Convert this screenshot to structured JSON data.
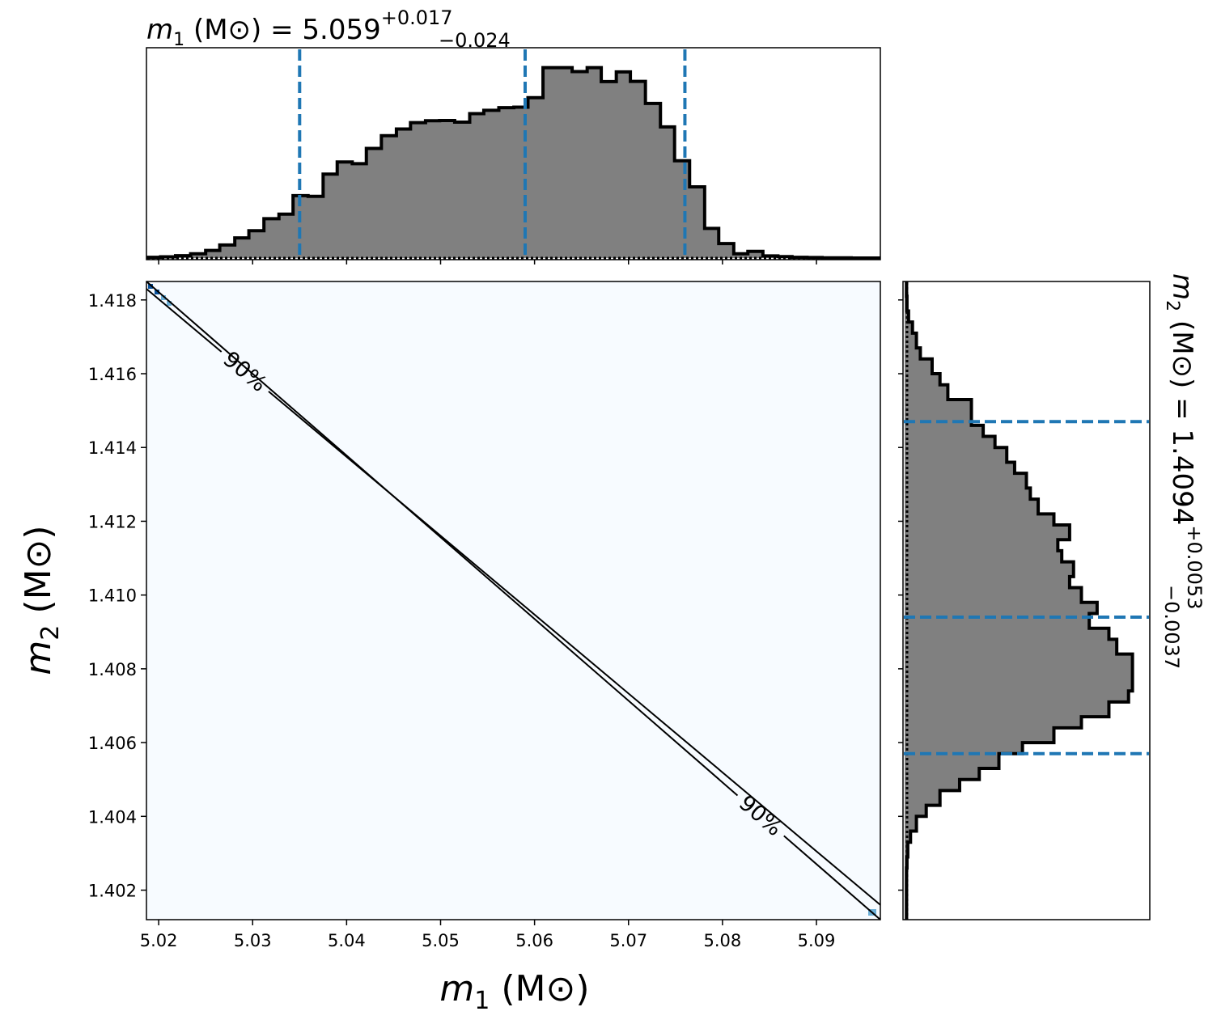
{
  "chart_data": [
    {
      "type": "histogram",
      "panel": "m1-marginal",
      "title": {
        "prefix": "m",
        "subscript": "1",
        "unit": "(M⊙)",
        "equals": "= 5.059",
        "upper": "+0.017",
        "lower": "−0.024"
      },
      "x_edges": [
        5.0187,
        5.0202,
        5.0218,
        5.0234,
        5.025,
        5.0265,
        5.0281,
        5.0296,
        5.0312,
        5.0328,
        5.0343,
        5.0359,
        5.0375,
        5.039,
        5.0406,
        5.0421,
        5.0437,
        5.0453,
        5.0468,
        5.0484,
        5.0499,
        5.0515,
        5.0531,
        5.0546,
        5.0562,
        5.0578,
        5.0593,
        5.0609,
        5.0624,
        5.064,
        5.0656,
        5.0671,
        5.0687,
        5.0702,
        5.0718,
        5.0734,
        5.0749,
        5.0765,
        5.0781,
        5.0796,
        5.0812,
        5.0827,
        5.0843,
        5.0859,
        5.0874,
        5.089,
        5.0906,
        5.0921,
        5.0937,
        5.0952,
        5.0968
      ],
      "density": [
        0.3,
        0.5,
        1.0,
        1.8,
        3.2,
        5.5,
        8.5,
        11.5,
        16.6,
        18.5,
        26.3,
        26.0,
        35.4,
        40.5,
        39.8,
        46.2,
        51.6,
        54.4,
        57.1,
        57.9,
        58.0,
        57.3,
        60.9,
        62.3,
        63.4,
        63.6,
        67.6,
        80.3,
        80.3,
        78.6,
        80.3,
        74.4,
        78.5,
        74.5,
        65.2,
        55.3,
        41.0,
        30.0,
        12.5,
        6.1,
        1.8,
        2.8,
        0.9,
        0.6,
        0.3,
        0.2,
        0.1,
        0.1,
        0.0,
        0.0
      ],
      "quantiles": {
        "lower": 5.035,
        "median": 5.059,
        "upper": 5.076
      },
      "ylim": [
        0,
        88
      ],
      "xlim": [
        5.0187,
        5.0968
      ],
      "x_ticks": [
        5.02,
        5.03,
        5.04,
        5.05,
        5.06,
        5.07,
        5.08,
        5.09
      ],
      "style": {
        "fill": "#808080",
        "edge": "#000000",
        "quantile_color": "#1f77b4"
      }
    },
    {
      "type": "heatmap",
      "panel": "joint",
      "xlabel": {
        "prefix": "m",
        "subscript": "1",
        "unit": "(M⊙)"
      },
      "ylabel": {
        "prefix": "m",
        "subscript": "2",
        "unit": "(M⊙)"
      },
      "xlim": [
        5.0187,
        5.0968
      ],
      "ylim": [
        1.4012,
        1.4185
      ],
      "x_ticks": [
        "5.02",
        "5.03",
        "5.04",
        "5.05",
        "5.06",
        "5.07",
        "5.08",
        "5.09"
      ],
      "y_ticks": [
        "1.402",
        "1.404",
        "1.406",
        "1.408",
        "1.410",
        "1.412",
        "1.414",
        "1.416",
        "1.418"
      ],
      "background": "#f7fbff",
      "contours": [
        {
          "label": "90%",
          "points": [
            [
              5.0187,
              1.4183
            ],
            [
              5.0968,
              1.4016
            ]
          ],
          "label_at": [
            5.029,
            1.416
          ]
        },
        {
          "label": "90%",
          "points": [
            [
              5.0187,
              1.4185
            ],
            [
              5.0968,
              1.4012
            ]
          ],
          "label_at": [
            5.084,
            1.404
          ]
        }
      ],
      "corner_cells": {
        "color_dark": "#08519c",
        "color_light": "#6baed6"
      }
    },
    {
      "type": "histogram",
      "panel": "m2-marginal",
      "orientation": "horizontal",
      "title": {
        "prefix": "m",
        "subscript": "2",
        "unit": "(M⊙)",
        "equals": "= 1.4094",
        "upper": "+0.0053",
        "lower": "−0.0037"
      },
      "y_edges": [
        1.4012,
        1.4015,
        1.4019,
        1.4022,
        1.4026,
        1.4029,
        1.4033,
        1.4036,
        1.404,
        1.4043,
        1.4047,
        1.405,
        1.4053,
        1.4057,
        1.406,
        1.4064,
        1.4067,
        1.4071,
        1.4074,
        1.4078,
        1.4081,
        1.4084,
        1.4088,
        1.4091,
        1.4095,
        1.4098,
        1.4102,
        1.4105,
        1.4109,
        1.4112,
        1.4115,
        1.4119,
        1.4122,
        1.4126,
        1.4129,
        1.4133,
        1.4136,
        1.414,
        1.4143,
        1.4146,
        1.415,
        1.4153,
        1.4157,
        1.416,
        1.4164,
        1.4167,
        1.4171,
        1.4174,
        1.4177,
        1.4181,
        1.4185
      ],
      "density": [
        0.5,
        0.5,
        0.5,
        0.5,
        0.6,
        0.8,
        1.5,
        3.0,
        5.5,
        9.0,
        14.0,
        19.0,
        24.0,
        30.0,
        38.0,
        45.0,
        52.0,
        57.0,
        58.0,
        58.0,
        58.0,
        54.0,
        52.0,
        47.0,
        49.0,
        45.0,
        42.0,
        43.0,
        40.0,
        39.0,
        42.0,
        38.0,
        34.0,
        32.0,
        31.0,
        28.0,
        26.0,
        23.0,
        20.0,
        17.0,
        17.0,
        11.0,
        9.0,
        7.0,
        4.0,
        3.0,
        2.0,
        1.0,
        0.6,
        0.5
      ],
      "quantiles": {
        "lower": 1.4057,
        "median": 1.4094,
        "upper": 1.4147
      },
      "xlim": [
        0,
        62
      ],
      "style": {
        "fill": "#808080",
        "edge": "#000000",
        "quantile_color": "#1f77b4"
      }
    }
  ]
}
